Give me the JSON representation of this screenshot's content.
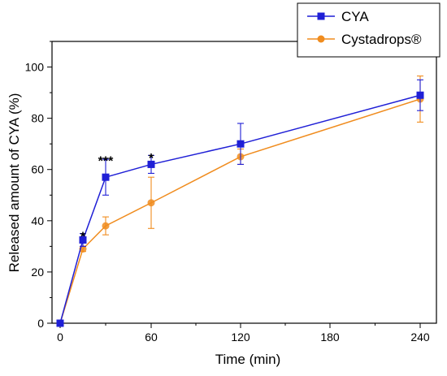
{
  "chart_data": {
    "type": "line",
    "title": "",
    "xlabel": "Time (min)",
    "ylabel": "Released amount of CYA (%)",
    "x_scale": "piecewise-linear (0–60 expanded, 60–240 compressed)",
    "xlim": [
      0,
      250
    ],
    "ylim": [
      0,
      110
    ],
    "x_ticks": [
      0,
      60,
      120,
      180,
      240
    ],
    "y_ticks": [
      0,
      20,
      40,
      60,
      80,
      100
    ],
    "grid": false,
    "legend_position": "top-right",
    "series": [
      {
        "name": "CYA",
        "color": "#1f1fd6",
        "marker": "square",
        "points": [
          {
            "x": 0,
            "y": 0,
            "err": 0
          },
          {
            "x": 15,
            "y": 32.5,
            "err": 2.5
          },
          {
            "x": 30,
            "y": 57,
            "err": 7
          },
          {
            "x": 60,
            "y": 62,
            "err": 3.5
          },
          {
            "x": 120,
            "y": 70,
            "err": 8
          },
          {
            "x": 240,
            "y": 89,
            "err": 6
          }
        ]
      },
      {
        "name": "Cystadrops®",
        "color": "#f08c1e",
        "marker": "circle",
        "points": [
          {
            "x": 0,
            "y": 0,
            "err": 0
          },
          {
            "x": 15,
            "y": 29,
            "err": 1
          },
          {
            "x": 30,
            "y": 38,
            "err": 3.5
          },
          {
            "x": 60,
            "y": 47,
            "err": 10
          },
          {
            "x": 120,
            "y": 65,
            "err": 3
          },
          {
            "x": 240,
            "y": 87.5,
            "err": 9
          }
        ]
      }
    ],
    "annotations": [
      {
        "x": 15,
        "y": 36,
        "text": "*"
      },
      {
        "x": 30,
        "y": 65.5,
        "text": "***"
      },
      {
        "x": 60,
        "y": 66.5,
        "text": "*"
      }
    ]
  }
}
